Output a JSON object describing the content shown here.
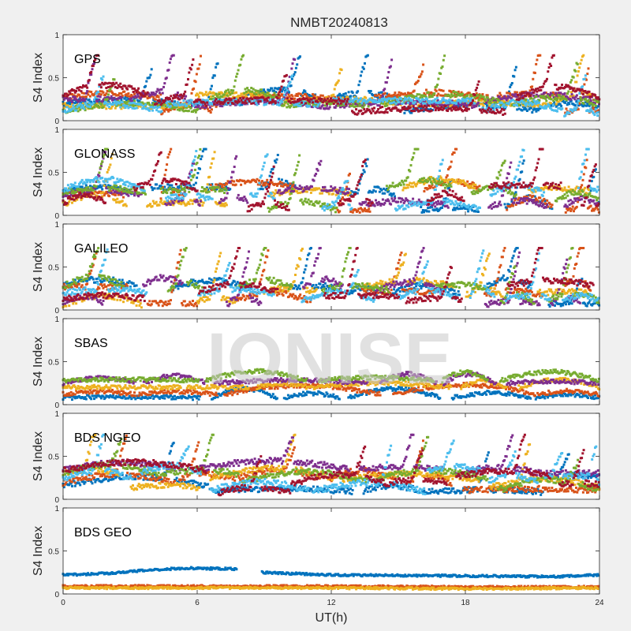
{
  "figure": {
    "title": "NMBT20240813",
    "xlabel": "UT(h)",
    "watermark": "IONISE",
    "background": "#f0f0f0",
    "axes_background": "#ffffff"
  },
  "colors": [
    "#0072BD",
    "#D95319",
    "#EDB120",
    "#7E2F8E",
    "#77AC30",
    "#4DBEEE",
    "#A2142F"
  ],
  "chart_data": [
    {
      "type": "scatter",
      "panel": "GPS",
      "ylabel": "S4 Index",
      "xlim": [
        0,
        24
      ],
      "ylim": [
        0,
        1
      ],
      "xticks": [
        0,
        6,
        12,
        18,
        24
      ],
      "yticks": [
        0,
        0.5,
        1
      ],
      "series_profile": {
        "count": 7,
        "baseline_range": [
          0.08,
          0.3
        ],
        "peak_max": 0.76,
        "typical_spike": 0.55,
        "coverage": "continuous"
      },
      "grid": false,
      "legend": "none"
    },
    {
      "type": "scatter",
      "panel": "GLONASS",
      "ylabel": "S4 Index",
      "xlim": [
        0,
        24
      ],
      "ylim": [
        0,
        1
      ],
      "xticks": [
        0,
        6,
        12,
        18,
        24
      ],
      "yticks": [
        0,
        0.5,
        1
      ],
      "series_profile": {
        "count": 7,
        "baseline_range": [
          0.05,
          0.35
        ],
        "peak_max": 0.77,
        "typical_spike": 0.6,
        "coverage": "intermittent"
      },
      "grid": false,
      "legend": "none"
    },
    {
      "type": "scatter",
      "panel": "GALILEO",
      "ylabel": "S4 Index",
      "xlim": [
        0,
        24
      ],
      "ylim": [
        0,
        1
      ],
      "xticks": [
        0,
        6,
        12,
        18,
        24
      ],
      "yticks": [
        0,
        0.5,
        1
      ],
      "series_profile": {
        "count": 7,
        "baseline_range": [
          0.05,
          0.3
        ],
        "peak_max": 0.72,
        "typical_spike": 0.6,
        "coverage": "intermittent"
      },
      "grid": false,
      "legend": "none"
    },
    {
      "type": "scatter",
      "panel": "SBAS",
      "ylabel": "S4 Index",
      "xlim": [
        0,
        24
      ],
      "ylim": [
        0,
        1
      ],
      "xticks": [
        0,
        6,
        12,
        18,
        24
      ],
      "yticks": [
        0,
        0.5,
        1
      ],
      "series_profile": {
        "count": 5,
        "levels": [
          0.08,
          0.12,
          0.2,
          0.25,
          0.28
        ],
        "peak_max": 0.45,
        "coverage": "continuous"
      },
      "grid": false,
      "legend": "none"
    },
    {
      "type": "scatter",
      "panel": "BDS NGEO",
      "ylabel": "S4 Index",
      "xlim": [
        0,
        24
      ],
      "ylim": [
        0,
        1
      ],
      "xticks": [
        0,
        6,
        12,
        18,
        24
      ],
      "yticks": [
        0,
        0.5,
        1
      ],
      "series_profile": {
        "count": 7,
        "baseline_range": [
          0.05,
          0.35
        ],
        "peak_max": 0.75,
        "typical_spike": 0.5,
        "coverage": "continuous"
      },
      "grid": false,
      "legend": "none"
    },
    {
      "type": "scatter",
      "panel": "BDS GEO",
      "ylabel": "S4 Index",
      "xlim": [
        0,
        24
      ],
      "ylim": [
        0,
        1
      ],
      "xticks": [
        0,
        6,
        12,
        18,
        24
      ],
      "yticks": [
        0,
        0.5,
        1
      ],
      "series": [
        {
          "points": [
            [
              0,
              0.22
            ],
            [
              2,
              0.24
            ],
            [
              4,
              0.28
            ],
            [
              5.5,
              0.3
            ],
            [
              7.8,
              0.29
            ],
            [
              8.5,
              null
            ],
            [
              8.9,
              0.25
            ],
            [
              12,
              0.22
            ],
            [
              18,
              0.21
            ],
            [
              22,
              0.2
            ],
            [
              24,
              0.22
            ]
          ]
        },
        {
          "points": [
            [
              0,
              0.09
            ],
            [
              6,
              0.09
            ],
            [
              12,
              0.09
            ],
            [
              18,
              0.08
            ],
            [
              24,
              0.08
            ]
          ]
        },
        {
          "points": [
            [
              0,
              0.07
            ],
            [
              6,
              0.07
            ],
            [
              12,
              0.07
            ],
            [
              18,
              0.06
            ],
            [
              24,
              0.07
            ]
          ]
        }
      ],
      "grid": false,
      "legend": "none"
    }
  ]
}
